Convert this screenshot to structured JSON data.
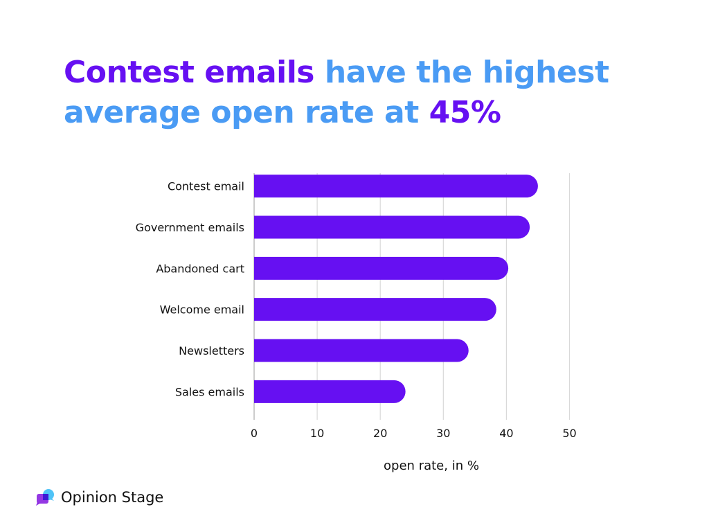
{
  "title": {
    "part1": "Contest emails",
    "part2": " have the highest average open rate at ",
    "part3": "45%"
  },
  "colors": {
    "purple": "#6610f2",
    "blue": "#4a9bf4",
    "grid": "#d9d9d9"
  },
  "chart_data": {
    "type": "bar",
    "orientation": "horizontal",
    "categories": [
      "Contest email",
      "Government emails",
      "Abandoned cart",
      "Welcome email",
      "Newsletters",
      "Sales emails"
    ],
    "values": [
      45,
      43.7,
      40.3,
      38.4,
      34,
      24
    ],
    "xlabel": "open rate, in %",
    "ylabel": "",
    "xlim": [
      0,
      50
    ],
    "xticks": [
      "0",
      "10",
      "20",
      "30",
      "40",
      "50"
    ],
    "grid": true
  },
  "brand": {
    "name": "Opinion Stage",
    "icon": "chat-bubbles-icon"
  }
}
